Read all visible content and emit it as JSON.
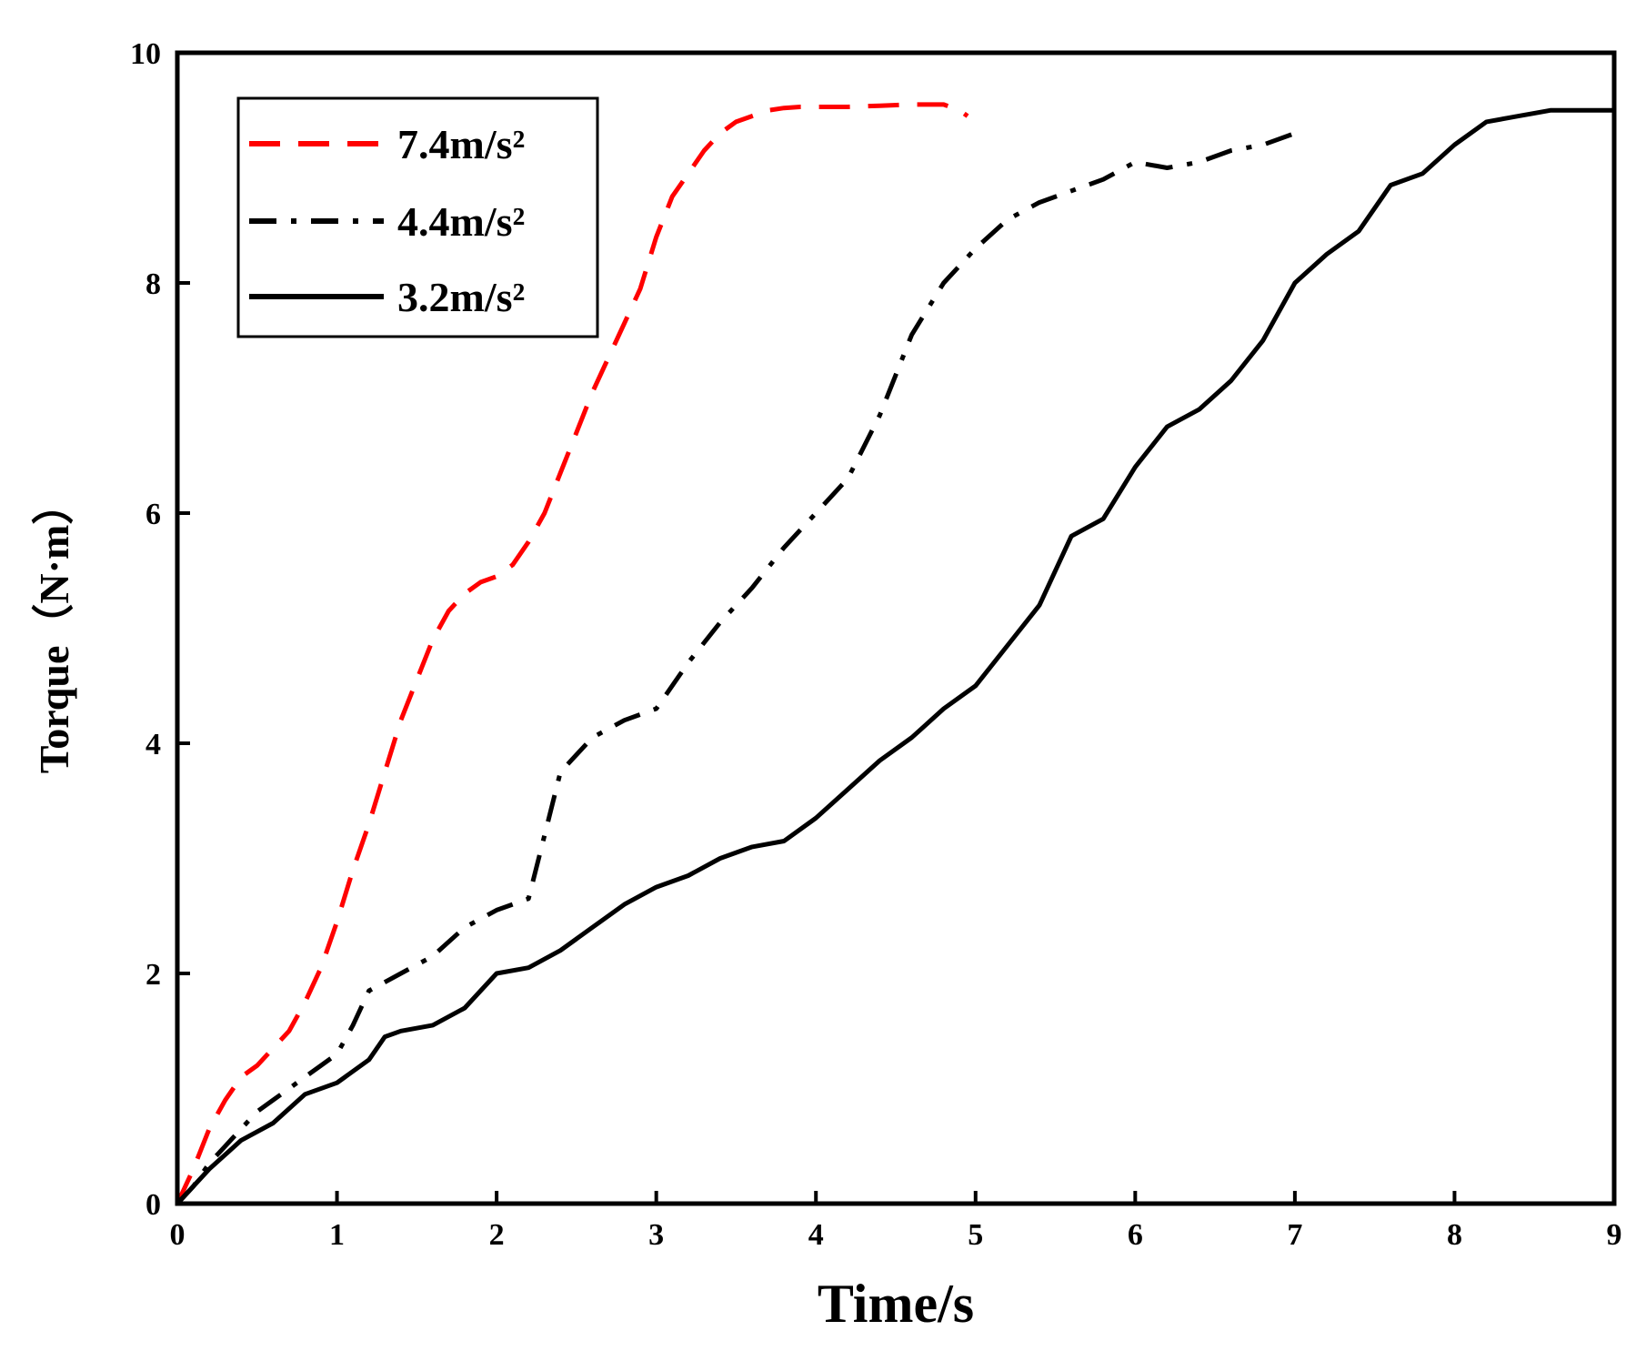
{
  "chart_data": {
    "type": "line",
    "title": "",
    "xlabel": "Time/s",
    "ylabel": "Torque（N·m）",
    "xlim": [
      0,
      9
    ],
    "ylim": [
      0,
      10
    ],
    "xticks": [
      0,
      1,
      2,
      3,
      4,
      5,
      6,
      7,
      8,
      9
    ],
    "yticks": [
      0,
      2,
      4,
      6,
      8,
      10
    ],
    "grid": false,
    "legend_position": "top-left",
    "series": [
      {
        "name": "7.4m/s²",
        "color": "#ff0000",
        "style": "dashed",
        "x": [
          0,
          0.1,
          0.2,
          0.3,
          0.4,
          0.5,
          0.6,
          0.7,
          0.8,
          0.9,
          1.0,
          1.1,
          1.2,
          1.3,
          1.4,
          1.5,
          1.6,
          1.7,
          1.8,
          1.9,
          2.0,
          2.1,
          2.2,
          2.3,
          2.4,
          2.5,
          2.6,
          2.7,
          2.8,
          2.9,
          3.0,
          3.1,
          3.2,
          3.3,
          3.4,
          3.5,
          3.6,
          3.7,
          3.8,
          3.9,
          4.0,
          4.2,
          4.4,
          4.6,
          4.8,
          4.9,
          4.95
        ],
        "y": [
          0,
          0.3,
          0.65,
          0.9,
          1.1,
          1.2,
          1.35,
          1.5,
          1.75,
          2.05,
          2.45,
          2.9,
          3.3,
          3.75,
          4.2,
          4.55,
          4.9,
          5.15,
          5.3,
          5.4,
          5.45,
          5.55,
          5.75,
          6.0,
          6.35,
          6.7,
          7.05,
          7.35,
          7.65,
          7.95,
          8.4,
          8.75,
          8.95,
          9.15,
          9.3,
          9.4,
          9.45,
          9.5,
          9.52,
          9.53,
          9.53,
          9.53,
          9.54,
          9.55,
          9.55,
          9.5,
          9.45
        ]
      },
      {
        "name": "4.4m/s²",
        "color": "#000000",
        "style": "dashdot",
        "x": [
          0,
          0.1,
          0.2,
          0.3,
          0.4,
          0.5,
          0.6,
          0.7,
          0.8,
          0.9,
          1.0,
          1.1,
          1.2,
          1.4,
          1.6,
          1.8,
          2.0,
          2.2,
          2.3,
          2.4,
          2.6,
          2.8,
          3.0,
          3.2,
          3.4,
          3.6,
          3.8,
          4.0,
          4.2,
          4.4,
          4.6,
          4.8,
          5.0,
          5.2,
          5.4,
          5.6,
          5.8,
          6.0,
          6.2,
          6.4,
          6.6,
          6.8,
          7.0
        ],
        "y": [
          0,
          0.15,
          0.35,
          0.5,
          0.65,
          0.8,
          0.9,
          1.0,
          1.1,
          1.2,
          1.3,
          1.55,
          1.85,
          2.0,
          2.15,
          2.4,
          2.55,
          2.65,
          3.2,
          3.75,
          4.05,
          4.2,
          4.3,
          4.7,
          5.05,
          5.35,
          5.7,
          6.0,
          6.3,
          6.85,
          7.55,
          8.0,
          8.3,
          8.55,
          8.7,
          8.8,
          8.9,
          9.05,
          9.0,
          9.05,
          9.15,
          9.2,
          9.3
        ]
      },
      {
        "name": "3.2m/s²",
        "color": "#000000",
        "style": "solid",
        "x": [
          0,
          0.2,
          0.4,
          0.6,
          0.8,
          1.0,
          1.2,
          1.3,
          1.4,
          1.6,
          1.8,
          2.0,
          2.2,
          2.4,
          2.6,
          2.8,
          3.0,
          3.2,
          3.4,
          3.6,
          3.8,
          4.0,
          4.2,
          4.4,
          4.6,
          4.8,
          5.0,
          5.2,
          5.4,
          5.6,
          5.8,
          6.0,
          6.2,
          6.4,
          6.6,
          6.8,
          7.0,
          7.2,
          7.4,
          7.6,
          7.8,
          8.0,
          8.2,
          8.4,
          8.6,
          8.8,
          9.0
        ],
        "y": [
          0,
          0.3,
          0.55,
          0.7,
          0.95,
          1.05,
          1.25,
          1.45,
          1.5,
          1.55,
          1.7,
          2.0,
          2.05,
          2.2,
          2.4,
          2.6,
          2.75,
          2.85,
          3.0,
          3.1,
          3.15,
          3.35,
          3.6,
          3.85,
          4.05,
          4.3,
          4.5,
          4.85,
          5.2,
          5.8,
          5.95,
          6.4,
          6.75,
          6.9,
          7.15,
          7.5,
          8.0,
          8.25,
          8.45,
          8.85,
          8.95,
          9.2,
          9.4,
          9.45,
          9.5,
          9.5,
          9.5
        ]
      }
    ]
  }
}
